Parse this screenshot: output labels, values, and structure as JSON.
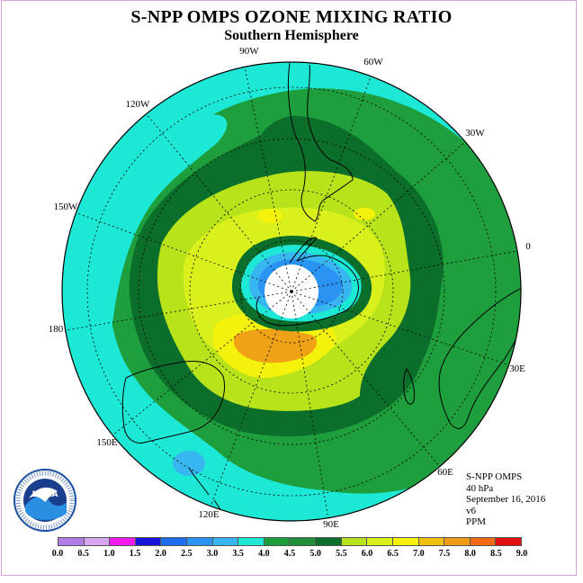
{
  "title": "S-NPP OMPS OZONE MIXING RATIO",
  "subtitle": "Southern Hemisphere",
  "longitude_labels": [
    {
      "id": "90w",
      "text": "90W"
    },
    {
      "id": "60w",
      "text": "60W"
    },
    {
      "id": "30w",
      "text": "30W"
    },
    {
      "id": "0",
      "text": "0"
    },
    {
      "id": "30e",
      "text": "30E"
    },
    {
      "id": "60e",
      "text": "60E"
    },
    {
      "id": "90e",
      "text": "90E"
    },
    {
      "id": "120e",
      "text": "120E"
    },
    {
      "id": "150e",
      "text": "150E"
    },
    {
      "id": "180",
      "text": "180"
    },
    {
      "id": "150w",
      "text": "150W"
    },
    {
      "id": "120w",
      "text": "120W"
    }
  ],
  "info": {
    "instrument": "S-NPP OMPS",
    "level": "40 hPa",
    "date": "September 16, 2016",
    "version": "v6",
    "units": "PPM"
  },
  "logo_text": "NOAA",
  "colorbar": {
    "labels": [
      "0.0",
      "0.5",
      "1.0",
      "1.5",
      "2.0",
      "2.5",
      "3.0",
      "3.5",
      "4.0",
      "4.5",
      "5.0",
      "5.5",
      "6.0",
      "6.5",
      "7.0",
      "7.5",
      "8.0",
      "8.5",
      "9.0"
    ],
    "colors": [
      "#b07ce6",
      "#d7a6ee",
      "#f21cf2",
      "#1a13d9",
      "#1f6ef2",
      "#2b93f2",
      "#38b6f2",
      "#1de8d6",
      "#1c9e3c",
      "#1e8f36",
      "#0b6e2b",
      "#b8e31a",
      "#d9f01c",
      "#f4f20c",
      "#f0c00c",
      "#f09a16",
      "#f06a14",
      "#e01010",
      "#8a5a3a"
    ]
  },
  "map_colors": {
    "background": "#1de8d6",
    "band_green": "#1e9e3c",
    "band_darkgreen": "#0b6e2b",
    "band_lightgreen": "#b8e31a",
    "band_yellowgreen": "#d9f01c",
    "band_yellow": "#f4f20c",
    "band_orange": "#f0a216",
    "band_lightblue": "#38b6f2",
    "band_blue": "#2b93f2",
    "pole_white": "#ffffff"
  }
}
